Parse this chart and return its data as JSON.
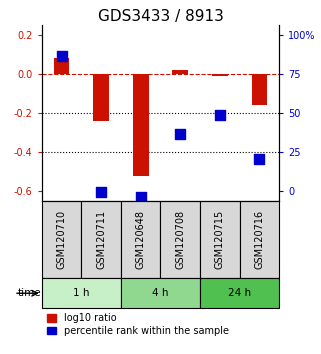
{
  "title": "GDS3433 / 8913",
  "samples": [
    "GSM120710",
    "GSM120711",
    "GSM120648",
    "GSM120708",
    "GSM120715",
    "GSM120716"
  ],
  "log10_ratio": [
    0.08,
    -0.24,
    -0.52,
    0.02,
    -0.01,
    -0.16
  ],
  "percentile_rank": [
    82,
    5,
    2,
    38,
    49,
    24
  ],
  "groups": [
    {
      "label": "1 h",
      "indices": [
        0,
        1
      ],
      "color": "#c8f0c8"
    },
    {
      "label": "4 h",
      "indices": [
        2,
        3
      ],
      "color": "#90d890"
    },
    {
      "label": "24 h",
      "indices": [
        4,
        5
      ],
      "color": "#50c050"
    }
  ],
  "bar_color": "#cc1100",
  "square_color": "#0000cc",
  "left_ylim": [
    -0.65,
    0.25
  ],
  "left_yticks": [
    0.2,
    0.0,
    -0.2,
    -0.4,
    -0.6
  ],
  "right_ylim": [
    -0.65,
    0.25
  ],
  "right_yticks_val": [
    -0.6,
    -0.4,
    -0.2,
    0.0,
    0.2
  ],
  "right_yticks_label": [
    "0",
    "25",
    "50",
    "75",
    "100%"
  ],
  "hline_y": 0.0,
  "dotted_lines": [
    -0.2,
    -0.4
  ],
  "bar_width": 0.4,
  "square_size": 50,
  "title_fontsize": 11,
  "tick_fontsize": 7,
  "label_fontsize": 7.5,
  "legend_fontsize": 7,
  "time_label": "time",
  "legend_items": [
    "log10 ratio",
    "percentile rank within the sample"
  ]
}
